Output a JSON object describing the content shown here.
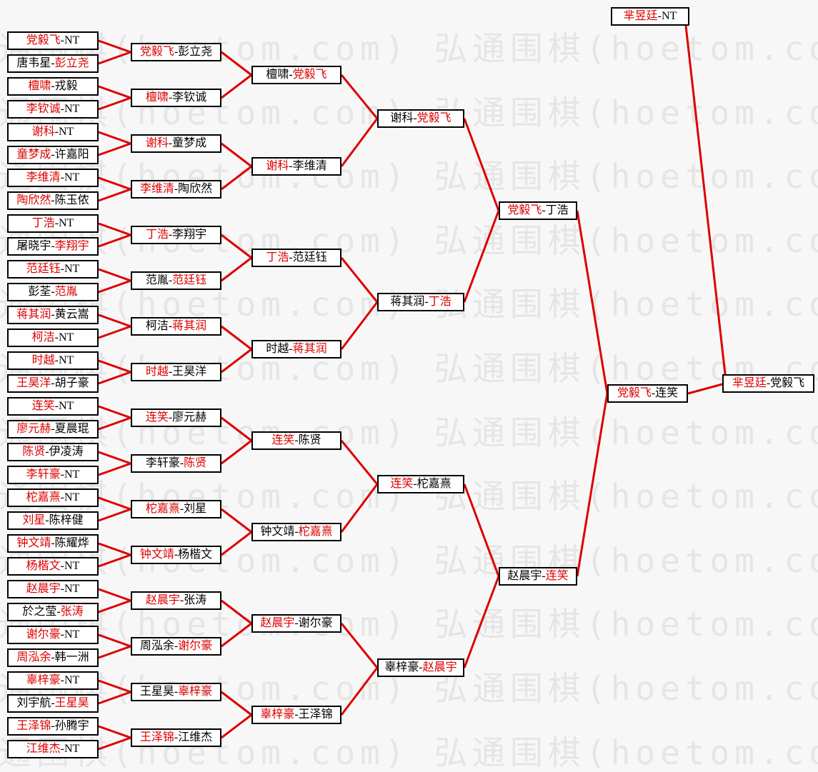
{
  "page": {
    "background": "#f7f7f7",
    "accent_red": "#dd0000",
    "box_border_color": "#000000",
    "box_background": "#ffffff"
  },
  "watermark": {
    "text": "弘通围棋(hoetom.com)",
    "color": "#e5e5e5",
    "repeats_per_row": 2,
    "rows": 12
  },
  "bracket": {
    "rounds": [
      {
        "matches": [
          {
            "p1": "党毅飞",
            "p2": "NT",
            "win": 1
          },
          {
            "p1": "唐韦星",
            "p2": "彭立尧",
            "win": 2
          },
          {
            "p1": "檀啸",
            "p2": "戎毅",
            "win": 1
          },
          {
            "p1": "李钦诚",
            "p2": "NT",
            "win": 1
          },
          {
            "p1": "谢科",
            "p2": "NT",
            "win": 1
          },
          {
            "p1": "童梦成",
            "p2": "许嘉阳",
            "win": 1
          },
          {
            "p1": "李维清",
            "p2": "NT",
            "win": 1
          },
          {
            "p1": "陶欣然",
            "p2": "陈玉侬",
            "win": 1
          },
          {
            "p1": "丁浩",
            "p2": "NT",
            "win": 1
          },
          {
            "p1": "屠晓宇",
            "p2": "李翔宇",
            "win": 2
          },
          {
            "p1": "范廷钰",
            "p2": "NT",
            "win": 1
          },
          {
            "p1": "彭荃",
            "p2": "范胤",
            "win": 2
          },
          {
            "p1": "蒋其润",
            "p2": "黄云嵩",
            "win": 1
          },
          {
            "p1": "柯洁",
            "p2": "NT",
            "win": 1
          },
          {
            "p1": "时越",
            "p2": "NT",
            "win": 1
          },
          {
            "p1": "王昊洋",
            "p2": "胡子豪",
            "win": 1
          },
          {
            "p1": "连笑",
            "p2": "NT",
            "win": 1
          },
          {
            "p1": "廖元赫",
            "p2": "夏晨琨",
            "win": 1
          },
          {
            "p1": "陈贤",
            "p2": "伊凌涛",
            "win": 1
          },
          {
            "p1": "李轩豪",
            "p2": "NT",
            "win": 1
          },
          {
            "p1": "柁嘉熹",
            "p2": "NT",
            "win": 1
          },
          {
            "p1": "刘星",
            "p2": "陈梓健",
            "win": 1
          },
          {
            "p1": "钟文靖",
            "p2": "陈耀烨",
            "win": 1
          },
          {
            "p1": "杨楷文",
            "p2": "NT",
            "win": 1
          },
          {
            "p1": "赵晨宇",
            "p2": "NT",
            "win": 1
          },
          {
            "p1": "於之莹",
            "p2": "张涛",
            "win": 2
          },
          {
            "p1": "谢尔豪",
            "p2": "NT",
            "win": 1
          },
          {
            "p1": "周泓余",
            "p2": "韩一洲",
            "win": 1
          },
          {
            "p1": "辜梓豪",
            "p2": "NT",
            "win": 1
          },
          {
            "p1": "刘宇航",
            "p2": "王星昊",
            "win": 2
          },
          {
            "p1": "王泽锦",
            "p2": "孙腾宇",
            "win": 1
          },
          {
            "p1": "江维杰",
            "p2": "NT",
            "win": 1
          }
        ]
      },
      {
        "matches": [
          {
            "p1": "党毅飞",
            "p2": "彭立尧",
            "win": 1
          },
          {
            "p1": "檀啸",
            "p2": "李钦诚",
            "win": 1
          },
          {
            "p1": "谢科",
            "p2": "童梦成",
            "win": 1
          },
          {
            "p1": "李维清",
            "p2": "陶欣然",
            "win": 1
          },
          {
            "p1": "丁浩",
            "p2": "李翔宇",
            "win": 1
          },
          {
            "p1": "范胤",
            "p2": "范廷钰",
            "win": 2
          },
          {
            "p1": "柯洁",
            "p2": "蒋其润",
            "win": 2
          },
          {
            "p1": "时越",
            "p2": "王昊洋",
            "win": 1
          },
          {
            "p1": "连笑",
            "p2": "廖元赫",
            "win": 1
          },
          {
            "p1": "李轩豪",
            "p2": "陈贤",
            "win": 2
          },
          {
            "p1": "柁嘉熹",
            "p2": "刘星",
            "win": 1
          },
          {
            "p1": "钟文靖",
            "p2": "杨楷文",
            "win": 1
          },
          {
            "p1": "赵晨宇",
            "p2": "张涛",
            "win": 1
          },
          {
            "p1": "周泓余",
            "p2": "谢尔豪",
            "win": 2
          },
          {
            "p1": "王星昊",
            "p2": "辜梓豪",
            "win": 2
          },
          {
            "p1": "王泽锦",
            "p2": "江维杰",
            "win": 1
          }
        ]
      },
      {
        "matches": [
          {
            "p1": "檀啸",
            "p2": "党毅飞",
            "win": 2
          },
          {
            "p1": "谢科",
            "p2": "李维清",
            "win": 1
          },
          {
            "p1": "丁浩",
            "p2": "范廷钰",
            "win": 1
          },
          {
            "p1": "时越",
            "p2": "蒋其润",
            "win": 2
          },
          {
            "p1": "连笑",
            "p2": "陈贤",
            "win": 1
          },
          {
            "p1": "钟文靖",
            "p2": "柁嘉熹",
            "win": 2
          },
          {
            "p1": "赵晨宇",
            "p2": "谢尔豪",
            "win": 1
          },
          {
            "p1": "辜梓豪",
            "p2": "王泽锦",
            "win": 1
          }
        ]
      },
      {
        "matches": [
          {
            "p1": "谢科",
            "p2": "党毅飞",
            "win": 2
          },
          {
            "p1": "蒋其润",
            "p2": "丁浩",
            "win": 2
          },
          {
            "p1": "连笑",
            "p2": "柁嘉熹",
            "win": 1
          },
          {
            "p1": "辜梓豪",
            "p2": "赵晨宇",
            "win": 2
          }
        ]
      },
      {
        "matches": [
          {
            "p1": "党毅飞",
            "p2": "丁浩",
            "win": 1
          },
          {
            "p1": "赵晨宇",
            "p2": "连笑",
            "win": 2
          }
        ]
      },
      {
        "matches": [
          {
            "p1": "党毅飞",
            "p2": "连笑",
            "win": 1
          }
        ]
      }
    ],
    "top_qualifier": {
      "p1": "芈昱廷",
      "p2": "NT",
      "win": 1
    },
    "grand_final": {
      "p1": "芈昱廷",
      "p2": "党毅飞",
      "win": 1
    }
  }
}
